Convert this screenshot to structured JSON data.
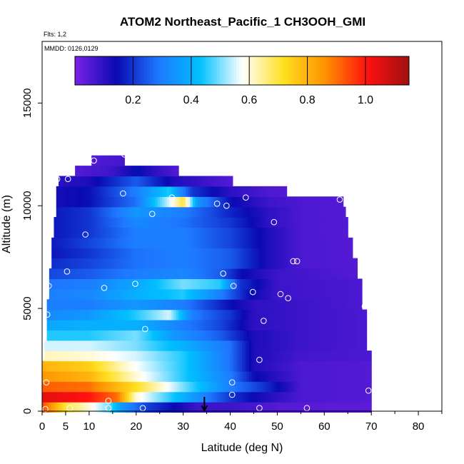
{
  "chart_data": {
    "type": "heatmap",
    "title": "ATOM2 Northeast_Pacific_1 CH3OOH_GMI",
    "flights_label": "Flts: 1,2",
    "dates_label": "MMDD: 0126,0129",
    "xlabel": "Latitude (deg N)",
    "ylabel": "Altitude (m)",
    "xlim": [
      0,
      85
    ],
    "ylim": [
      0,
      18000
    ],
    "x_ticks": [
      0,
      5,
      10,
      20,
      30,
      40,
      50,
      60,
      70,
      80
    ],
    "y_ticks": [
      0,
      5000,
      10000,
      15000
    ],
    "colorbar": {
      "range": [
        0,
        1.15
      ],
      "ticks": [
        0.2,
        0.4,
        0.6,
        0.8,
        1.0
      ],
      "tick_labels": [
        "0.2",
        "0.4",
        "0.6",
        "0.8",
        "1.0"
      ],
      "colors": [
        "#7b22e6",
        "#0a0ab4",
        "#1e78ff",
        "#00c0ff",
        "#ffffff",
        "#ffe020",
        "#ff9000",
        "#ff1010",
        "#a01010"
      ]
    },
    "layers": [
      {
        "alt": 200,
        "lat_start": 0,
        "lat_end": 70,
        "values": [
          [
            0,
            0.95
          ],
          [
            5,
            0.7
          ],
          [
            10,
            0.6
          ],
          [
            14,
            0.5
          ],
          [
            17,
            0.35
          ],
          [
            22,
            0.22
          ],
          [
            30,
            0.12
          ],
          [
            33,
            0.08
          ],
          [
            40,
            0.08
          ],
          [
            50,
            0.05
          ],
          [
            70,
            0.04
          ]
        ]
      },
      {
        "alt": 700,
        "lat_start": 0,
        "lat_end": 70,
        "values": [
          [
            0,
            1.05
          ],
          [
            10,
            1.0
          ],
          [
            16,
            0.9
          ],
          [
            20,
            0.6
          ],
          [
            30,
            0.4
          ],
          [
            40,
            0.2
          ],
          [
            47,
            0.12
          ],
          [
            55,
            0.06
          ],
          [
            70,
            0.05
          ]
        ]
      },
      {
        "alt": 1200,
        "lat_start": 0,
        "lat_end": 70,
        "values": [
          [
            0,
            0.92
          ],
          [
            10,
            0.9
          ],
          [
            20,
            0.72
          ],
          [
            30,
            0.5
          ],
          [
            40,
            0.3
          ],
          [
            47,
            0.2
          ],
          [
            55,
            0.06
          ],
          [
            70,
            0.05
          ]
        ]
      },
      {
        "alt": 1700,
        "lat_start": 0,
        "lat_end": 70,
        "values": [
          [
            0,
            0.85
          ],
          [
            10,
            0.8
          ],
          [
            20,
            0.6
          ],
          [
            30,
            0.45
          ],
          [
            40,
            0.3
          ],
          [
            45,
            0.15
          ],
          [
            55,
            0.06
          ],
          [
            70,
            0.05
          ]
        ]
      },
      {
        "alt": 2200,
        "lat_start": 0,
        "lat_end": 70,
        "values": [
          [
            0,
            0.8
          ],
          [
            10,
            0.75
          ],
          [
            18,
            0.6
          ],
          [
            30,
            0.45
          ],
          [
            40,
            0.28
          ],
          [
            45,
            0.12
          ],
          [
            55,
            0.06
          ],
          [
            70,
            0.05
          ]
        ]
      },
      {
        "alt": 2700,
        "lat_start": 0.5,
        "lat_end": 70,
        "values": [
          [
            0,
            0.62
          ],
          [
            10,
            0.6
          ],
          [
            20,
            0.55
          ],
          [
            30,
            0.45
          ],
          [
            40,
            0.28
          ],
          [
            45,
            0.12
          ],
          [
            55,
            0.07
          ],
          [
            70,
            0.06
          ]
        ]
      },
      {
        "alt": 3200,
        "lat_start": 0.5,
        "lat_end": 69,
        "values": [
          [
            0,
            0.55
          ],
          [
            10,
            0.55
          ],
          [
            20,
            0.5
          ],
          [
            30,
            0.4
          ],
          [
            40,
            0.28
          ],
          [
            45,
            0.12
          ],
          [
            55,
            0.08
          ],
          [
            69,
            0.06
          ]
        ]
      },
      {
        "alt": 3700,
        "lat_start": 1,
        "lat_end": 69,
        "values": [
          [
            0,
            0.45
          ],
          [
            10,
            0.45
          ],
          [
            20,
            0.5
          ],
          [
            28,
            0.35
          ],
          [
            38,
            0.25
          ],
          [
            45,
            0.12
          ],
          [
            55,
            0.08
          ],
          [
            69,
            0.06
          ]
        ]
      },
      {
        "alt": 4200,
        "lat_start": 1,
        "lat_end": 69,
        "values": [
          [
            0,
            0.38
          ],
          [
            10,
            0.4
          ],
          [
            20,
            0.4
          ],
          [
            30,
            0.3
          ],
          [
            38,
            0.22
          ],
          [
            45,
            0.1
          ],
          [
            55,
            0.08
          ],
          [
            69,
            0.06
          ]
        ]
      },
      {
        "alt": 4700,
        "lat_start": 1,
        "lat_end": 69,
        "values": [
          [
            0,
            0.32
          ],
          [
            10,
            0.35
          ],
          [
            20,
            0.45
          ],
          [
            27,
            0.55
          ],
          [
            32,
            0.3
          ],
          [
            40,
            0.2
          ],
          [
            45,
            0.1
          ],
          [
            55,
            0.08
          ],
          [
            69,
            0.06
          ]
        ]
      },
      {
        "alt": 5200,
        "lat_start": 1,
        "lat_end": 68,
        "values": [
          [
            0,
            0.3
          ],
          [
            10,
            0.3
          ],
          [
            20,
            0.35
          ],
          [
            30,
            0.3
          ],
          [
            40,
            0.15
          ],
          [
            45,
            0.1
          ],
          [
            55,
            0.08
          ],
          [
            68,
            0.06
          ]
        ]
      },
      {
        "alt": 5700,
        "lat_start": 1.5,
        "lat_end": 68,
        "values": [
          [
            0,
            0.3
          ],
          [
            10,
            0.32
          ],
          [
            20,
            0.4
          ],
          [
            30,
            0.45
          ],
          [
            38,
            0.3
          ],
          [
            44,
            0.15
          ],
          [
            50,
            0.08
          ],
          [
            68,
            0.06
          ]
        ]
      },
      {
        "alt": 6200,
        "lat_start": 1.5,
        "lat_end": 68,
        "values": [
          [
            0,
            0.28
          ],
          [
            10,
            0.3
          ],
          [
            20,
            0.38
          ],
          [
            30,
            0.5
          ],
          [
            38,
            0.45
          ],
          [
            42,
            0.2
          ],
          [
            50,
            0.08
          ],
          [
            68,
            0.06
          ]
        ]
      },
      {
        "alt": 6700,
        "lat_start": 1.5,
        "lat_end": 67,
        "values": [
          [
            0,
            0.22
          ],
          [
            10,
            0.25
          ],
          [
            20,
            0.3
          ],
          [
            30,
            0.32
          ],
          [
            38,
            0.25
          ],
          [
            42,
            0.15
          ],
          [
            50,
            0.08
          ],
          [
            67,
            0.05
          ]
        ]
      },
      {
        "alt": 7200,
        "lat_start": 2,
        "lat_end": 67,
        "values": [
          [
            0,
            0.18
          ],
          [
            10,
            0.22
          ],
          [
            20,
            0.28
          ],
          [
            30,
            0.3
          ],
          [
            40,
            0.25
          ],
          [
            48,
            0.12
          ],
          [
            55,
            0.06
          ],
          [
            67,
            0.05
          ]
        ]
      },
      {
        "alt": 7700,
        "lat_start": 2,
        "lat_end": 66,
        "values": [
          [
            0,
            0.15
          ],
          [
            10,
            0.2
          ],
          [
            20,
            0.28
          ],
          [
            30,
            0.3
          ],
          [
            40,
            0.25
          ],
          [
            48,
            0.12
          ],
          [
            55,
            0.06
          ],
          [
            66,
            0.05
          ]
        ]
      },
      {
        "alt": 8200,
        "lat_start": 2,
        "lat_end": 66,
        "values": [
          [
            0,
            0.15
          ],
          [
            10,
            0.22
          ],
          [
            20,
            0.3
          ],
          [
            30,
            0.3
          ],
          [
            40,
            0.22
          ],
          [
            48,
            0.12
          ],
          [
            55,
            0.06
          ],
          [
            66,
            0.05
          ]
        ]
      },
      {
        "alt": 8700,
        "lat_start": 2.5,
        "lat_end": 65,
        "values": [
          [
            0,
            0.15
          ],
          [
            10,
            0.2
          ],
          [
            20,
            0.3
          ],
          [
            30,
            0.3
          ],
          [
            40,
            0.22
          ],
          [
            48,
            0.12
          ],
          [
            55,
            0.06
          ],
          [
            65,
            0.05
          ]
        ]
      },
      {
        "alt": 9200,
        "lat_start": 2.5,
        "lat_end": 65,
        "values": [
          [
            0,
            0.15
          ],
          [
            10,
            0.2
          ],
          [
            20,
            0.32
          ],
          [
            30,
            0.28
          ],
          [
            40,
            0.2
          ],
          [
            48,
            0.1
          ],
          [
            55,
            0.06
          ],
          [
            65,
            0.05
          ]
        ]
      },
      {
        "alt": 9700,
        "lat_start": 3,
        "lat_end": 64.5,
        "values": [
          [
            0,
            0.15
          ],
          [
            10,
            0.2
          ],
          [
            20,
            0.35
          ],
          [
            30,
            0.3
          ],
          [
            40,
            0.18
          ],
          [
            48,
            0.1
          ],
          [
            55,
            0.06
          ],
          [
            64,
            0.05
          ]
        ]
      },
      {
        "alt": 10200,
        "lat_start": 3,
        "lat_end": 64,
        "values": [
          [
            0,
            0.12
          ],
          [
            10,
            0.15
          ],
          [
            20,
            0.28
          ],
          [
            27,
            0.55
          ],
          [
            30,
            0.7
          ],
          [
            33,
            0.35
          ],
          [
            40,
            0.15
          ],
          [
            48,
            0.08
          ],
          [
            55,
            0.06
          ],
          [
            64,
            0.05
          ]
        ]
      },
      {
        "alt": 10700,
        "lat_start": 3,
        "lat_end": 52,
        "values": [
          [
            0,
            0.12
          ],
          [
            10,
            0.15
          ],
          [
            20,
            0.3
          ],
          [
            27,
            0.45
          ],
          [
            32,
            0.2
          ],
          [
            40,
            0.1
          ],
          [
            48,
            0.06
          ],
          [
            52,
            0.05
          ]
        ]
      },
      {
        "alt": 11200,
        "lat_start": 3.5,
        "lat_end": 40.5,
        "values": [
          [
            0,
            0.1
          ],
          [
            10,
            0.12
          ],
          [
            20,
            0.25
          ],
          [
            28,
            0.12
          ],
          [
            35,
            0.08
          ],
          [
            40,
            0.05
          ]
        ]
      },
      {
        "alt": 11700,
        "lat_start": 7,
        "lat_end": 29,
        "values": [
          [
            7,
            0.05
          ],
          [
            15,
            0.08
          ],
          [
            20,
            0.15
          ],
          [
            24,
            0.1
          ],
          [
            29,
            0.05
          ]
        ]
      },
      {
        "alt": 12200,
        "lat_start": 10.5,
        "lat_end": 17.5,
        "values": [
          [
            10,
            0.05
          ],
          [
            17,
            0.07
          ]
        ]
      }
    ],
    "observations": [
      [
        0.7,
        100
      ],
      [
        5.9,
        150
      ],
      [
        14.1,
        150
      ],
      [
        21.4,
        150
      ],
      [
        46.2,
        150
      ],
      [
        56.3,
        150
      ],
      [
        0.9,
        1400
      ],
      [
        14.1,
        500
      ],
      [
        40.4,
        800
      ],
      [
        40.4,
        1400
      ],
      [
        46.2,
        2500
      ],
      [
        69.4,
        1000
      ],
      [
        1.1,
        4700
      ],
      [
        1.4,
        6100
      ],
      [
        5.3,
        6800
      ],
      [
        13.2,
        6000
      ],
      [
        19.8,
        6200
      ],
      [
        21.9,
        4000
      ],
      [
        38.5,
        6700
      ],
      [
        40.7,
        6100
      ],
      [
        44.8,
        5800
      ],
      [
        47.1,
        4400
      ],
      [
        50.7,
        5700
      ],
      [
        52.3,
        5500
      ],
      [
        53.4,
        7300
      ],
      [
        54.2,
        7300
      ],
      [
        68.6,
        5100
      ],
      [
        9.2,
        8600
      ],
      [
        2.3,
        10300
      ],
      [
        3.2,
        11300
      ],
      [
        5.5,
        11300
      ],
      [
        11.0,
        12200
      ],
      [
        17.5,
        12500
      ],
      [
        17.2,
        10600
      ],
      [
        23.4,
        9600
      ],
      [
        27.6,
        10400
      ],
      [
        37.2,
        10100
      ],
      [
        39.2,
        10000
      ],
      [
        43.3,
        10400
      ],
      [
        49.3,
        9200
      ],
      [
        63.3,
        10300
      ]
    ],
    "arrow_lat": 34.5
  }
}
